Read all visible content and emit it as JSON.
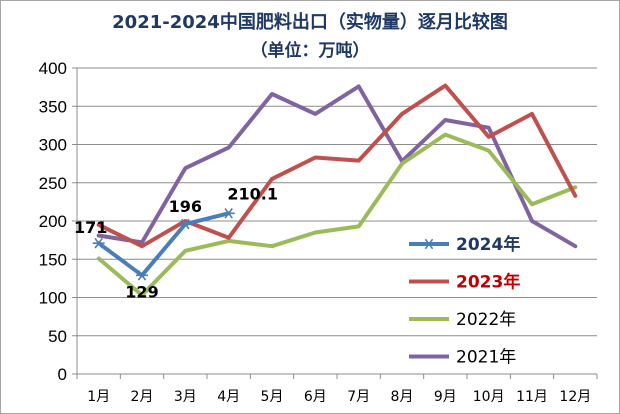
{
  "chart_data": {
    "type": "line",
    "title": "2021-2024中国肥料出口（实物量）逐月比较图",
    "subtitle": "（单位：万吨）",
    "xlabel": "",
    "ylabel": "",
    "ylim": [
      0,
      400
    ],
    "yticks": [
      0,
      50,
      100,
      150,
      200,
      250,
      300,
      350,
      400
    ],
    "categories": [
      "1月",
      "2月",
      "3月",
      "4月",
      "5月",
      "6月",
      "7月",
      "8月",
      "9月",
      "10月",
      "11月",
      "12月"
    ],
    "legend_position": "center-right",
    "series": [
      {
        "name": "2024年",
        "color": "#4a7ebb",
        "marker": "asterisk",
        "label_bold": true,
        "legend_color": "#1f3864",
        "values": [
          171,
          129,
          196,
          210.1,
          null,
          null,
          null,
          null,
          null,
          null,
          null,
          null
        ],
        "data_labels": [
          "171",
          "129",
          "196",
          "210.1"
        ]
      },
      {
        "name": "2023年",
        "color": "#c0504d",
        "marker": "none",
        "label_bold": true,
        "legend_color": "#c00000",
        "values": [
          195,
          167,
          200,
          178,
          255,
          283,
          279,
          340,
          377,
          310,
          340,
          233
        ]
      },
      {
        "name": "2022年",
        "color": "#9bbb59",
        "marker": "none",
        "label_bold": false,
        "legend_color": "#000000",
        "values": [
          151,
          103,
          161,
          174,
          167,
          185,
          193,
          275,
          313,
          292,
          222,
          244
        ]
      },
      {
        "name": "2021年",
        "color": "#8064a2",
        "marker": "none",
        "label_bold": false,
        "legend_color": "#000000",
        "values": [
          181,
          172,
          269,
          296,
          366,
          340,
          376,
          278,
          332,
          322,
          200,
          167
        ]
      }
    ]
  }
}
